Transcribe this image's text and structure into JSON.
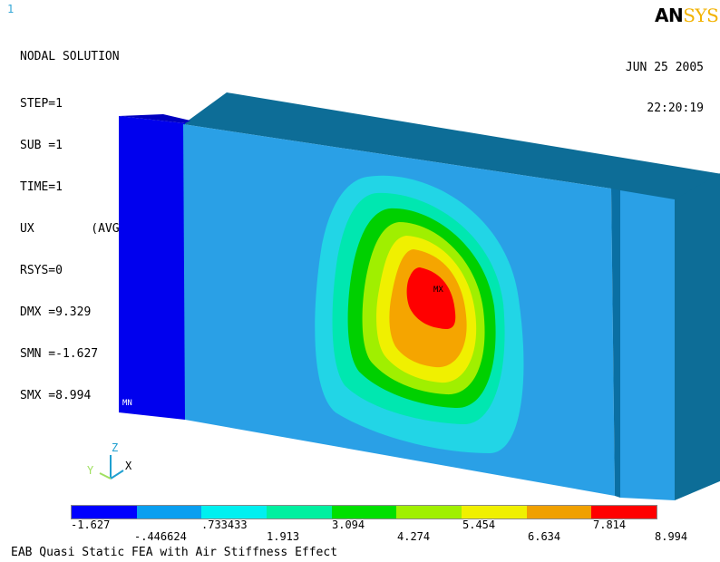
{
  "window_number": "1",
  "logo": {
    "part1": "AN",
    "part2": "SYS"
  },
  "solution": {
    "title": "NODAL SOLUTION",
    "lines": [
      "STEP=1",
      "SUB =1",
      "TIME=1",
      "UX        (AVG)",
      "RSYS=0",
      "DMX =9.329",
      "SMN =-1.627",
      "SMX =8.994"
    ]
  },
  "date": "JUN 25 2005",
  "time": "22:20:19",
  "markers": {
    "max": "MX",
    "min": "MN"
  },
  "triad": {
    "z": "Z",
    "y": "Y",
    "x": "X"
  },
  "legend": {
    "colors": [
      "#0000ff",
      "#0a9ff0",
      "#00f0f0",
      "#00f0a0",
      "#00e000",
      "#a0f000",
      "#f0f000",
      "#f0a000",
      "#ff0000"
    ],
    "upper_labels": [
      "-1.627",
      "-.446624",
      ".733433",
      "1.913",
      "3.094",
      "4.274",
      "5.454",
      "6.634",
      "7.814",
      "8.994"
    ]
  },
  "footer_title": "EAB Quasi Static FEA with Air Stiffness Effect"
}
